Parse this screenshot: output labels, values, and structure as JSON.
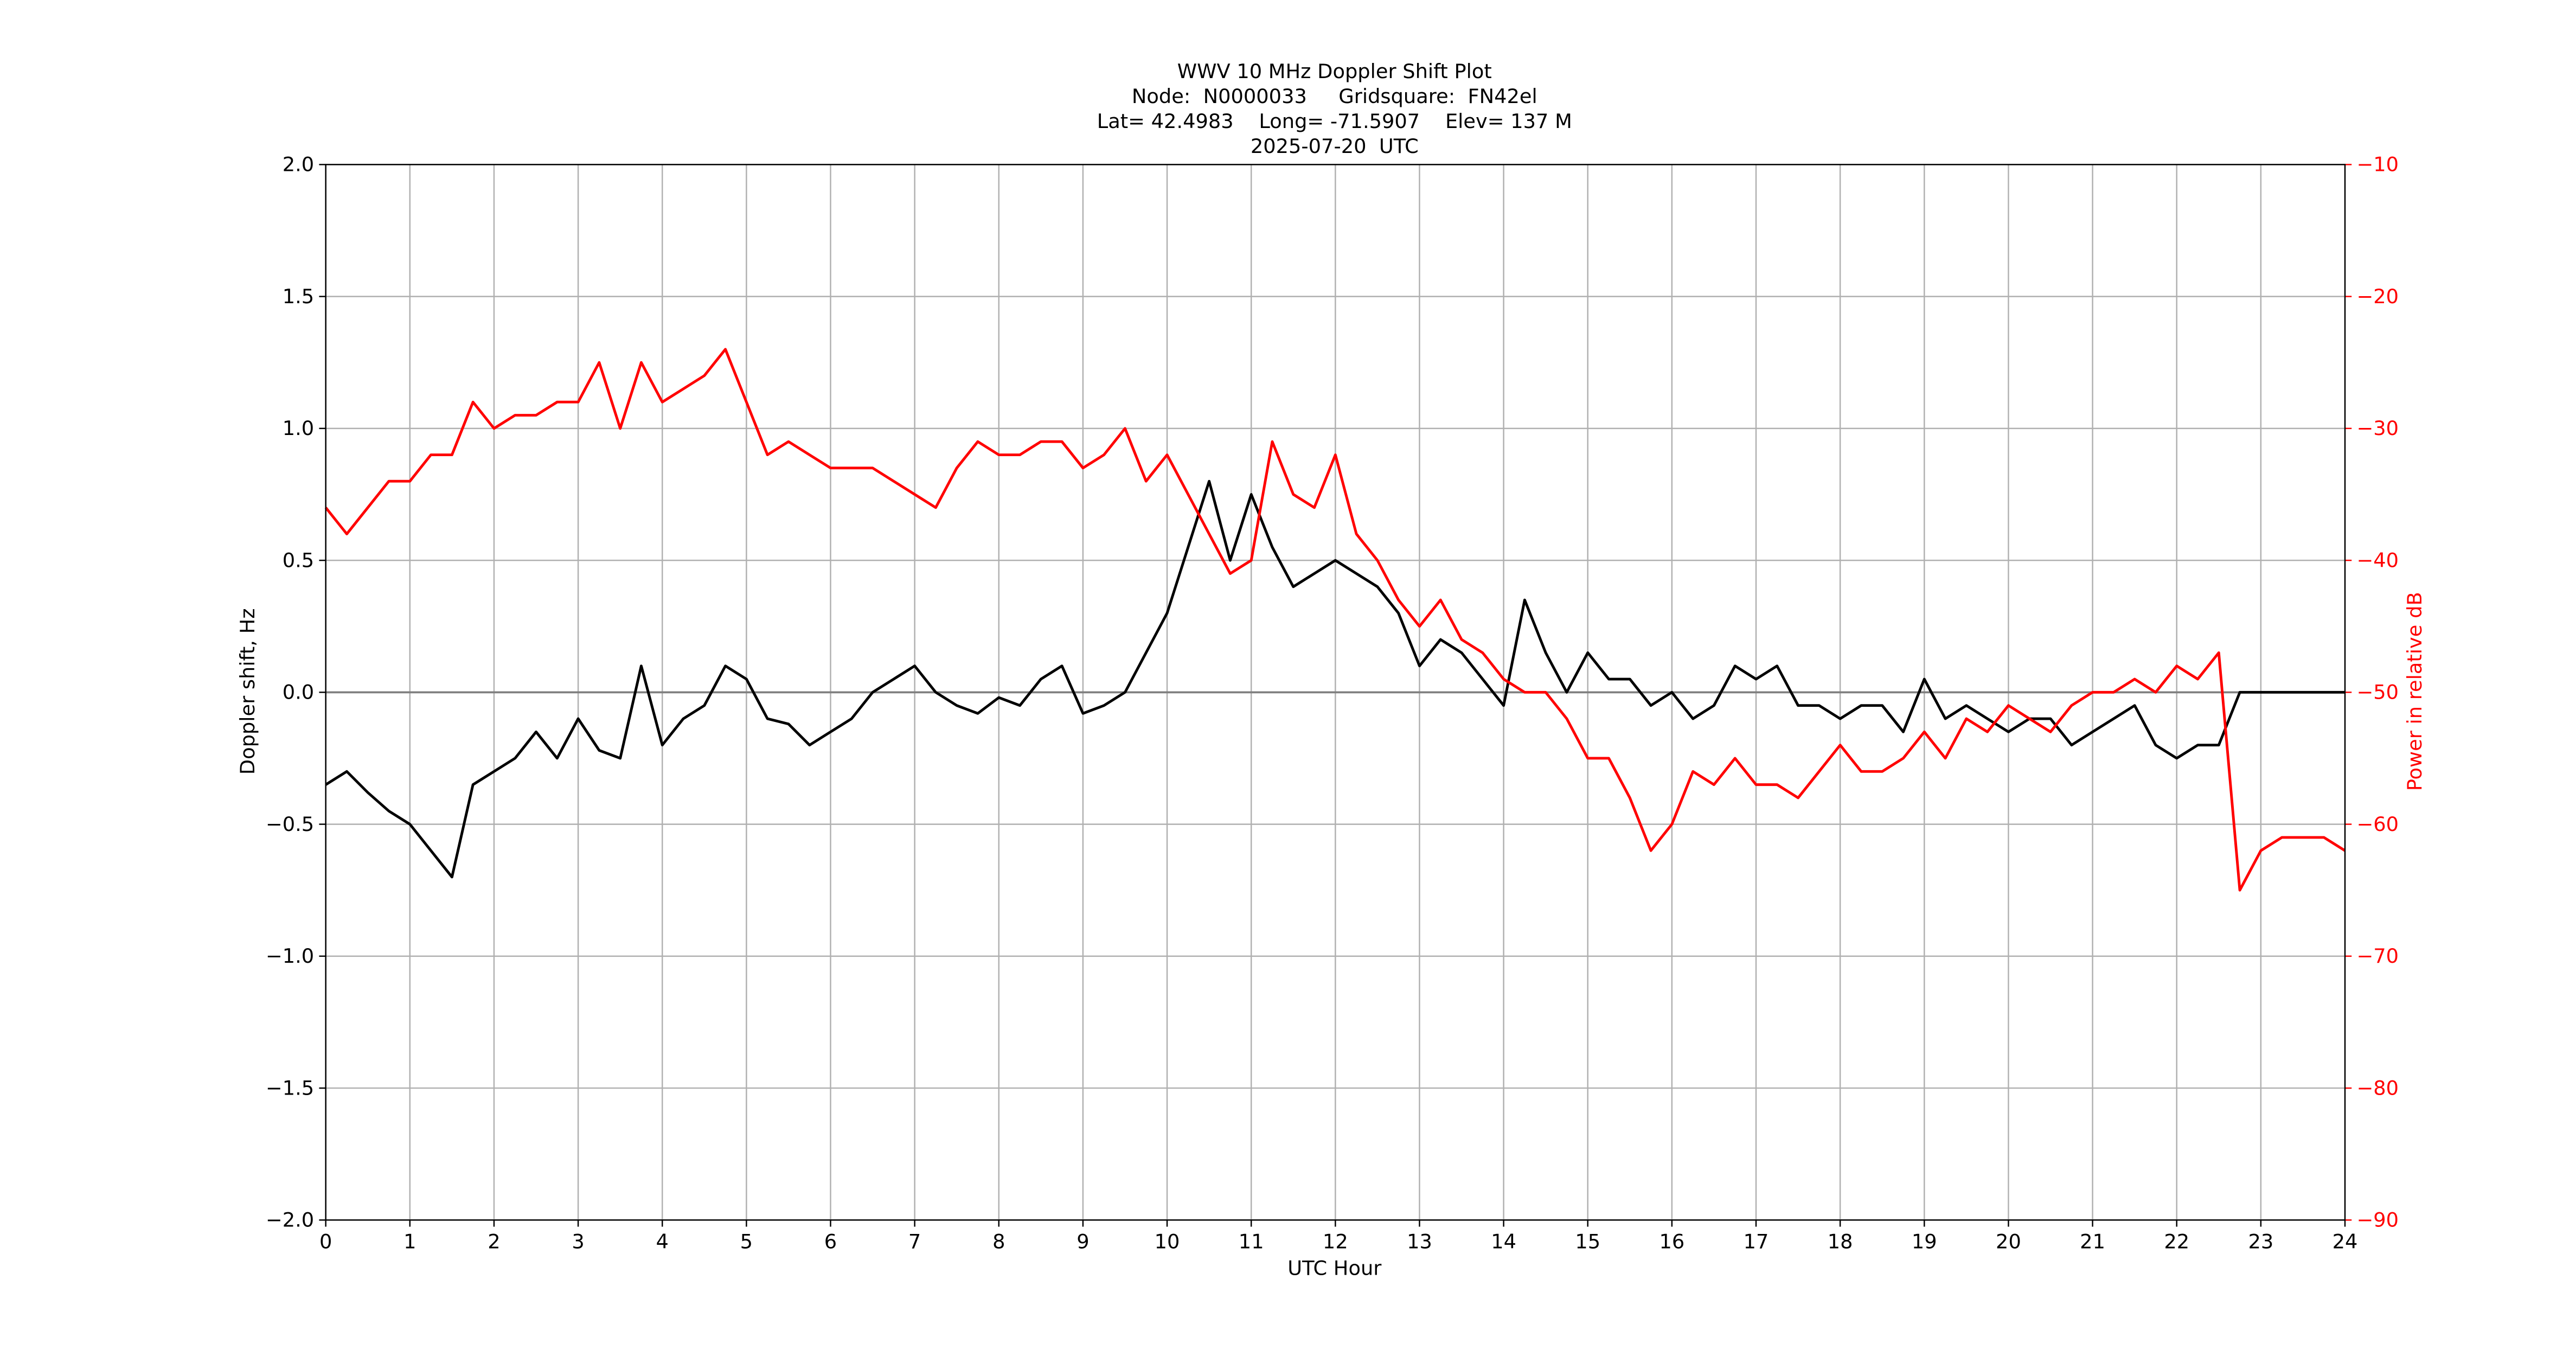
{
  "chart_data": {
    "type": "line",
    "title": [
      "WWV 10 MHz Doppler Shift Plot",
      "Node:  N0000033     Gridsquare:  FN42el",
      "Lat= 42.4983    Long= -71.5907    Elev= 137 M",
      "2025-07-20  UTC"
    ],
    "xlabel": "UTC Hour",
    "ylabel": "Doppler shift, Hz",
    "y2label": "Power in relative dB",
    "x": [
      0,
      0.25,
      0.5,
      0.75,
      1,
      1.25,
      1.5,
      1.75,
      2,
      2.25,
      2.5,
      2.75,
      3,
      3.25,
      3.5,
      3.75,
      4,
      4.25,
      4.5,
      4.75,
      5,
      5.25,
      5.5,
      5.75,
      6,
      6.25,
      6.5,
      6.75,
      7,
      7.25,
      7.5,
      7.75,
      8,
      8.25,
      8.5,
      8.75,
      9,
      9.25,
      9.5,
      9.75,
      10,
      10.25,
      10.5,
      10.75,
      11,
      11.25,
      11.5,
      11.75,
      12,
      12.25,
      12.5,
      12.75,
      13,
      13.25,
      13.5,
      13.75,
      14,
      14.25,
      14.5,
      14.75,
      15,
      15.25,
      15.5,
      15.75,
      16,
      16.25,
      16.5,
      16.75,
      17,
      17.25,
      17.5,
      17.75,
      18,
      18.25,
      18.5,
      18.75,
      19,
      19.25,
      19.5,
      19.75,
      20,
      20.25,
      20.5,
      20.75,
      21,
      21.25,
      21.5,
      21.75,
      22,
      22.25,
      22.5,
      22.75,
      23,
      23.25,
      23.5,
      23.75,
      24
    ],
    "series": [
      {
        "name": "Doppler shift",
        "color": "#000000",
        "axis": "y",
        "values": [
          -0.35,
          -0.3,
          -0.38,
          -0.45,
          -0.5,
          -0.6,
          -0.7,
          -0.35,
          -0.3,
          -0.25,
          -0.15,
          -0.25,
          -0.1,
          -0.22,
          -0.25,
          0.1,
          -0.2,
          -0.1,
          -0.05,
          0.1,
          0.05,
          -0.1,
          -0.12,
          -0.2,
          -0.15,
          -0.1,
          0,
          0.05,
          0.1,
          0,
          -0.05,
          -0.08,
          -0.02,
          -0.05,
          0.05,
          0.1,
          -0.08,
          -0.05,
          0,
          0.15,
          0.3,
          0.55,
          0.8,
          0.5,
          0.75,
          0.55,
          0.4,
          0.45,
          0.5,
          0.45,
          0.4,
          0.3,
          0.1,
          0.2,
          0.15,
          0.05,
          -0.05,
          0.35,
          0.15,
          0,
          0.15,
          0.05,
          0.05,
          -0.05,
          0,
          -0.1,
          -0.05,
          0.1,
          0.05,
          0.1,
          -0.05,
          -0.05,
          -0.1,
          -0.05,
          -0.05,
          -0.15,
          0.05,
          -0.1,
          -0.05,
          -0.1,
          -0.15,
          -0.1,
          -0.1,
          -0.2,
          -0.15,
          -0.1,
          -0.05,
          -0.2,
          -0.25,
          -0.2,
          -0.2,
          0,
          0,
          0,
          0,
          0,
          0
        ]
      },
      {
        "name": "Power",
        "color": "#ff0000",
        "axis": "y2",
        "values": [
          -36,
          -38,
          -36,
          -34,
          -34,
          -32,
          -32,
          -28,
          -30,
          -29,
          -29,
          -28,
          -28,
          -25,
          -30,
          -25,
          -28,
          -27,
          -26,
          -24,
          -28,
          -32,
          -31,
          -32,
          -33,
          -33,
          -33,
          -34,
          -35,
          -36,
          -33,
          -31,
          -32,
          -32,
          -31,
          -31,
          -33,
          -32,
          -30,
          -34,
          -32,
          -35,
          -38,
          -41,
          -40,
          -31,
          -35,
          -36,
          -32,
          -38,
          -40,
          -43,
          -45,
          -43,
          -46,
          -47,
          -49,
          -50,
          -50,
          -52,
          -55,
          -55,
          -58,
          -62,
          -60,
          -56,
          -57,
          -55,
          -57,
          -57,
          -58,
          -56,
          -54,
          -56,
          -56,
          -55,
          -53,
          -55,
          -52,
          -53,
          -51,
          -52,
          -53,
          -51,
          -50,
          -50,
          -49,
          -50,
          -48,
          -49,
          -47,
          -65,
          -62,
          -61,
          -61,
          -61,
          -62
        ]
      }
    ],
    "xlim": [
      0,
      24
    ],
    "xticks": [
      0,
      1,
      2,
      3,
      4,
      5,
      6,
      7,
      8,
      9,
      10,
      11,
      12,
      13,
      14,
      15,
      16,
      17,
      18,
      19,
      20,
      21,
      22,
      23,
      24
    ],
    "ylim": [
      -2.0,
      2.0
    ],
    "yticks": [
      {
        "value": -2.0,
        "label": "−2.0"
      },
      {
        "value": -1.5,
        "label": "−1.5"
      },
      {
        "value": -1.0,
        "label": "−1.0"
      },
      {
        "value": -0.5,
        "label": "−0.5"
      },
      {
        "value": 0.0,
        "label": "0.0"
      },
      {
        "value": 0.5,
        "label": "0.5"
      },
      {
        "value": 1.0,
        "label": "1.0"
      },
      {
        "value": 1.5,
        "label": "1.5"
      },
      {
        "value": 2.0,
        "label": "2.0"
      }
    ],
    "y2lim": [
      -90,
      -10
    ],
    "y2ticks": [
      {
        "value": -90,
        "label": "−90"
      },
      {
        "value": -80,
        "label": "−80"
      },
      {
        "value": -70,
        "label": "−70"
      },
      {
        "value": -60,
        "label": "−60"
      },
      {
        "value": -50,
        "label": "−50"
      },
      {
        "value": -40,
        "label": "−40"
      },
      {
        "value": -30,
        "label": "−30"
      },
      {
        "value": -20,
        "label": "−20"
      },
      {
        "value": -10,
        "label": "−10"
      }
    ],
    "y2color": "#ff0000",
    "grid": true
  }
}
